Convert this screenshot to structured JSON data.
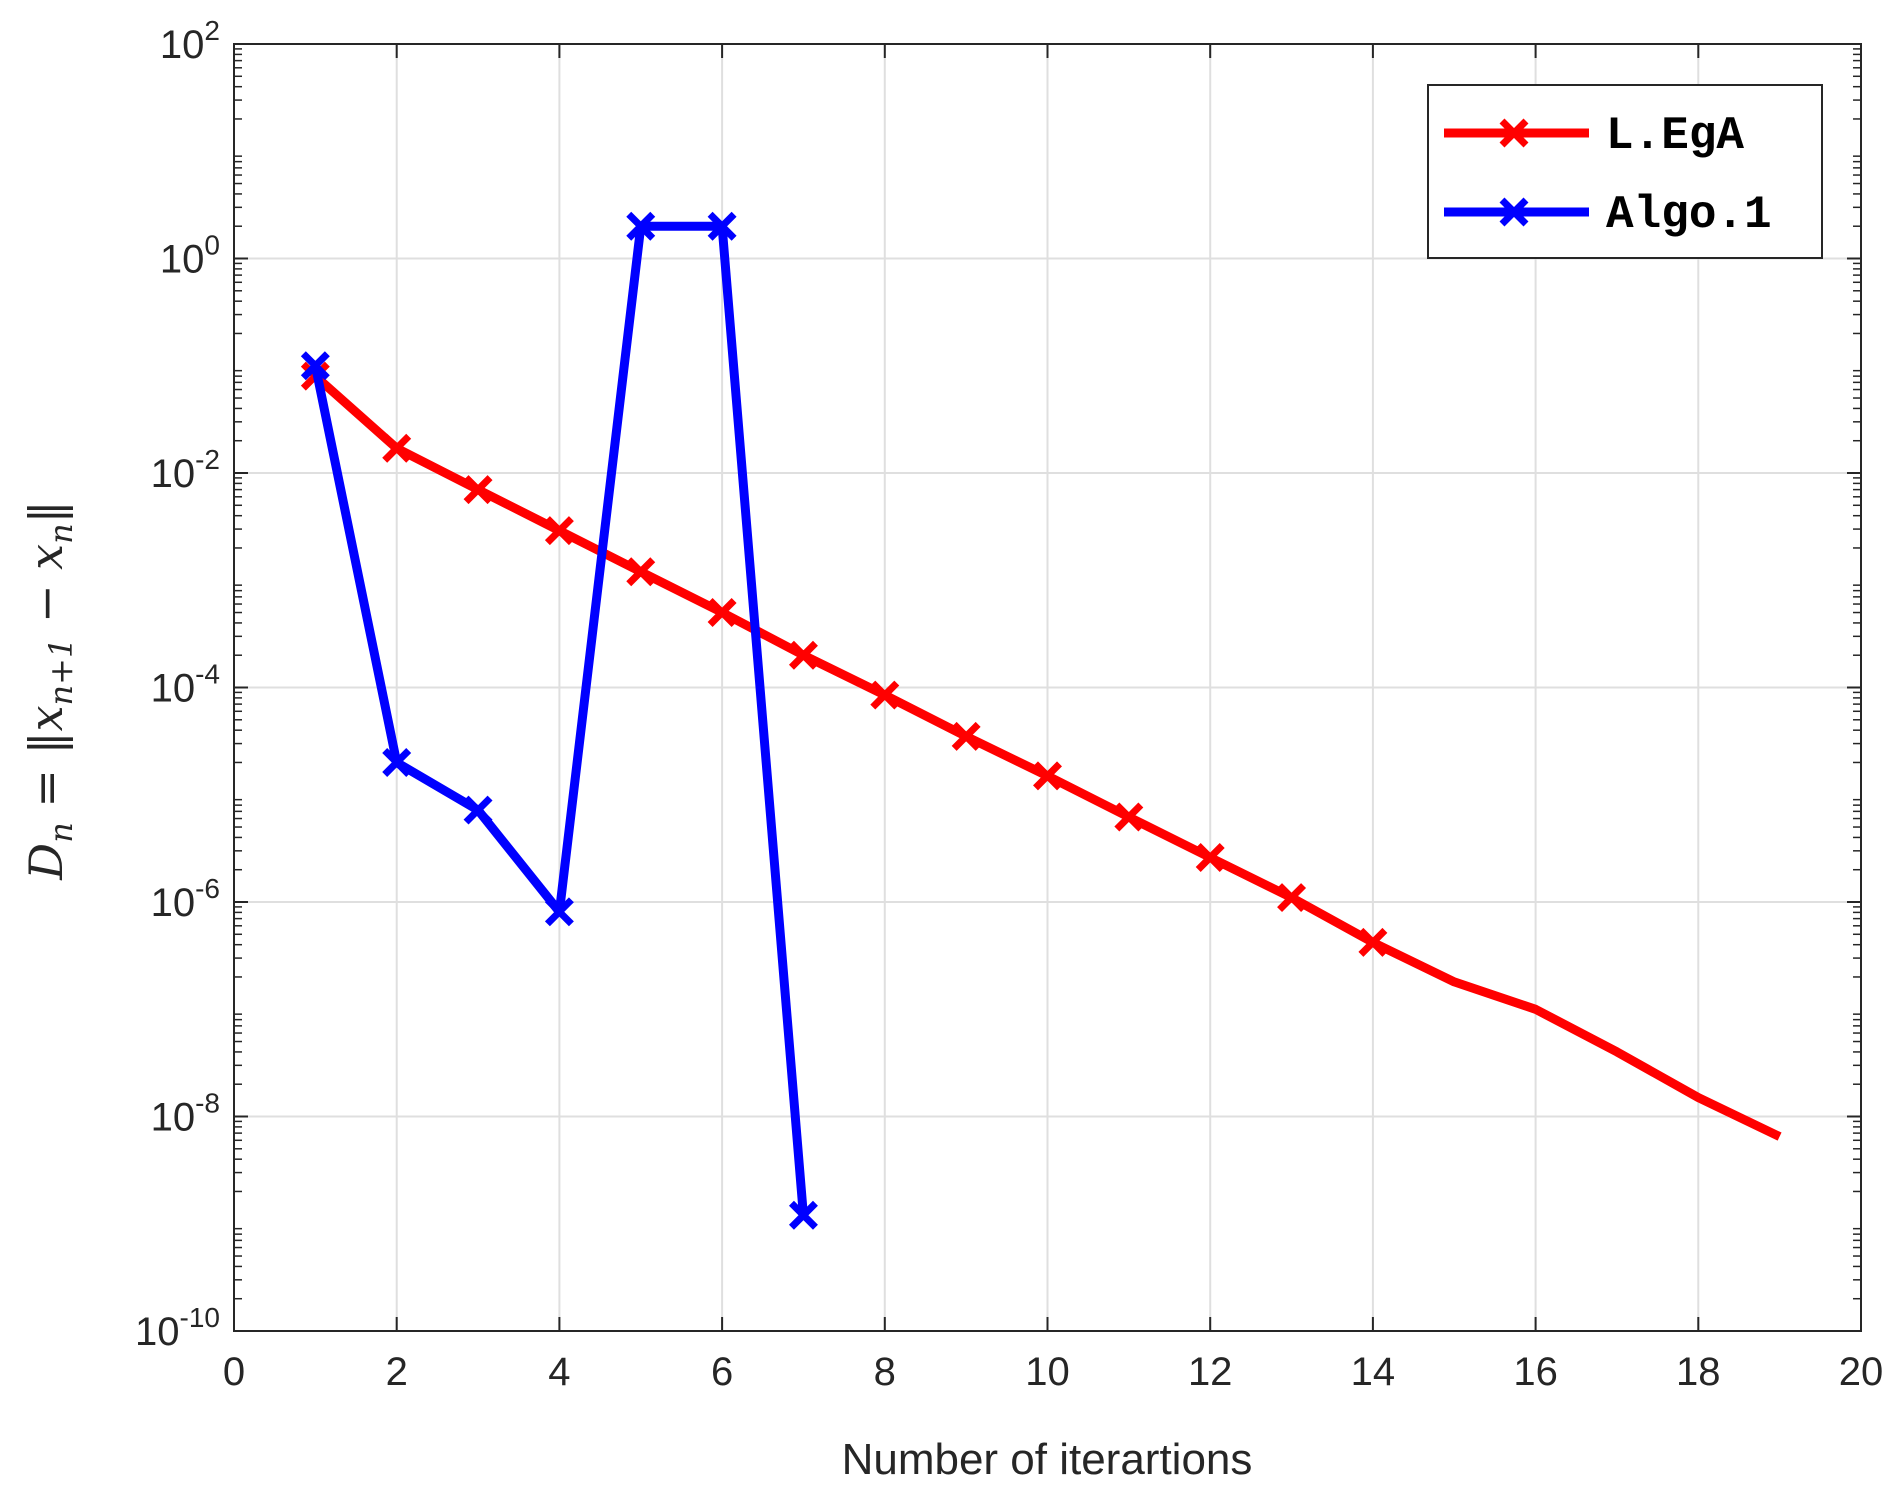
{
  "chart_data": {
    "type": "line",
    "xlabel": "Number of iterartions",
    "ylabel": "D_n = ||x_{n+1} − x_n||",
    "ylabel_parts": {
      "lhs_main": "D",
      "lhs_sub": "n",
      "eq": " = ",
      "norm_open": "‖",
      "x1_main": "x",
      "x1_sub": "n+1",
      "minus": " − ",
      "x2_main": "x",
      "x2_sub": "n",
      "norm_close": "‖"
    },
    "xlim": [
      0,
      20
    ],
    "ylim": [
      1e-10,
      100
    ],
    "yscale": "log",
    "grid": true,
    "legend_position": "top-right",
    "x_ticks": [
      0,
      2,
      4,
      6,
      8,
      10,
      12,
      14,
      16,
      18,
      20
    ],
    "x_tick_labels": [
      "0",
      "2",
      "4",
      "6",
      "8",
      "10",
      "12",
      "14",
      "16",
      "18",
      "20"
    ],
    "y_ticks": [
      {
        "value": 1e-10,
        "base": "10",
        "exp": "-10"
      },
      {
        "value": 1e-08,
        "base": "10",
        "exp": "-8"
      },
      {
        "value": 1e-06,
        "base": "10",
        "exp": "-6"
      },
      {
        "value": 0.0001,
        "base": "10",
        "exp": "-4"
      },
      {
        "value": 0.01,
        "base": "10",
        "exp": "-2"
      },
      {
        "value": 1,
        "base": "10",
        "exp": "0"
      },
      {
        "value": 100,
        "base": "10",
        "exp": "2"
      }
    ],
    "series": [
      {
        "name": "L.EgA",
        "color": "#ff0000",
        "marker": "x",
        "x": [
          1,
          2,
          3,
          4,
          5,
          6,
          7,
          8,
          9,
          10,
          11,
          12,
          13,
          14,
          15,
          16,
          17,
          18,
          19
        ],
        "y": [
          0.08,
          0.017,
          0.007,
          0.0029,
          0.0012,
          0.0005,
          0.0002,
          8.5e-05,
          3.5e-05,
          1.5e-05,
          6.2e-06,
          2.6e-06,
          1.1e-06,
          4.2e-07,
          1.8e-07,
          1e-07,
          4e-08,
          1.5e-08,
          6.5e-09
        ],
        "marker_count": 14
      },
      {
        "name": "Algo.1",
        "color": "#0000ff",
        "marker": "x",
        "x": [
          1,
          2,
          3,
          4,
          5,
          6,
          7
        ],
        "y": [
          0.1,
          2e-05,
          7.2e-06,
          8.1e-07,
          2,
          2,
          1.2e-09
        ],
        "marker_count": 7
      }
    ]
  }
}
